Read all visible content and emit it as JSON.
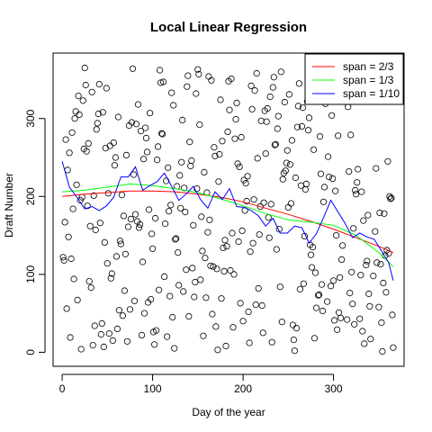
{
  "chart_data": {
    "type": "scatter",
    "title": "Local Linear Regression",
    "xlabel": "Day of the year",
    "ylabel": "Draft Number",
    "xlim": [
      -10,
      378
    ],
    "ylim": [
      -18,
      384
    ],
    "xticks": [
      0,
      100,
      200,
      300
    ],
    "yticks": [
      0,
      100,
      200,
      300
    ],
    "grid": false,
    "legend_position": "top-right",
    "points_seed": 1970,
    "n_points": 366,
    "points_max": 366,
    "series": [
      {
        "name": "span = 2/3",
        "color": "#ff0000",
        "x": [
          0,
          25,
          50,
          75,
          100,
          125,
          150,
          175,
          200,
          225,
          250,
          275,
          300,
          325,
          350,
          366
        ],
        "y": [
          200,
          203,
          205,
          207,
          207,
          206,
          203,
          199,
          193,
          185,
          177,
          168,
          158,
          147,
          136,
          128
        ]
      },
      {
        "name": "span = 1/3",
        "color": "#00ff00",
        "x": [
          0,
          25,
          50,
          75,
          100,
          125,
          150,
          175,
          200,
          225,
          250,
          275,
          300,
          325,
          350,
          366
        ],
        "y": [
          206,
          208,
          212,
          216,
          214,
          210,
          205,
          197,
          188,
          178,
          170,
          167,
          163,
          150,
          128,
          110
        ]
      },
      {
        "name": "span = 1/10",
        "color": "#0000ff",
        "x": [
          0,
          8,
          17,
          25,
          33,
          41,
          49,
          57,
          65,
          73,
          81,
          89,
          97,
          105,
          113,
          121,
          129,
          137,
          145,
          153,
          161,
          169,
          177,
          185,
          193,
          201,
          209,
          217,
          225,
          233,
          241,
          249,
          257,
          265,
          273,
          281,
          289,
          297,
          305,
          313,
          321,
          329,
          337,
          345,
          353,
          361,
          366
        ],
        "y": [
          245,
          212,
          198,
          184,
          187,
          182,
          188,
          199,
          225,
          225,
          238,
          208,
          214,
          219,
          230,
          213,
          195,
          203,
          213,
          196,
          185,
          206,
          196,
          210,
          187,
          186,
          182,
          175,
          162,
          172,
          153,
          153,
          162,
          160,
          140,
          152,
          173,
          195,
          180,
          165,
          147,
          153,
          148,
          145,
          130,
          115,
          92
        ]
      }
    ]
  }
}
